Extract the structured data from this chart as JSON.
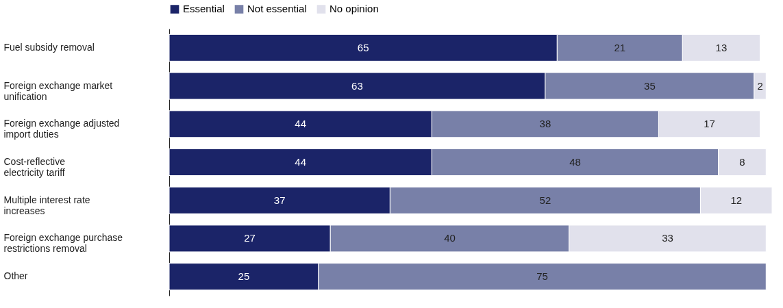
{
  "chart_data": {
    "type": "bar",
    "orientation": "horizontal",
    "stacked": true,
    "data_labels": true,
    "legend": "top",
    "categories": [
      "Fuel subsidy removal",
      "Foreign exchange market unification",
      "Foreign exchange adjusted import duties",
      "Cost-reflective electricity tariff",
      "Multiple interest rate increases",
      "Foreign exchange purchase restrictions removal",
      "Other"
    ],
    "series": [
      {
        "name": "Essential",
        "color": "#1b2468",
        "values": [
          65,
          63,
          44,
          44,
          37,
          27,
          25
        ]
      },
      {
        "name": "Not essential",
        "color": "#7880a8",
        "values": [
          21,
          35,
          38,
          48,
          52,
          40,
          75
        ]
      },
      {
        "name": "No opinion",
        "color": "#e1e1ec",
        "values": [
          13,
          2,
          17,
          8,
          12,
          33,
          null
        ]
      }
    ]
  }
}
